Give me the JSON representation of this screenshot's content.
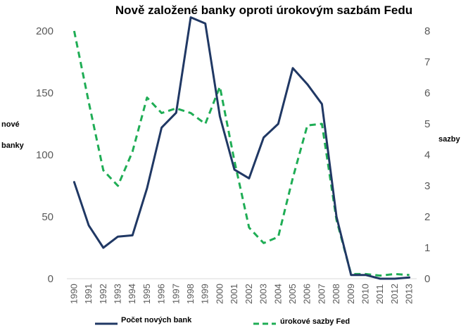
{
  "chart_data": {
    "type": "line",
    "title": "Nově založené banky oproti úrokovým sazbám Fedu",
    "ylabel_left": [
      "nové",
      "banky"
    ],
    "ylabel_right": "sazby",
    "x": [
      "1990",
      "1991",
      "1992",
      "1993",
      "1994",
      "1995",
      "1996",
      "1997",
      "1998",
      "1999",
      "2000",
      "2001",
      "2002",
      "2003",
      "2004",
      "2005",
      "2006",
      "2007",
      "2008",
      "2009",
      "2010",
      "2011",
      "2012",
      "2013"
    ],
    "ylim_left": [
      0,
      200
    ],
    "yticks_left": [
      0,
      50,
      100,
      150,
      200
    ],
    "ylim_right": [
      0,
      8
    ],
    "yticks_right": [
      0,
      1,
      2,
      3,
      4,
      5,
      6,
      7,
      8
    ],
    "grid": false,
    "legend_position": "bottom",
    "series": [
      {
        "name": "Počet nových bank",
        "axis": "left",
        "style": "solid",
        "color": "#203864",
        "values": [
          78,
          43,
          25,
          34,
          35,
          73,
          122,
          134,
          211,
          206,
          131,
          88,
          81,
          114,
          125,
          170,
          157,
          141,
          50,
          3,
          3,
          0,
          0,
          1
        ]
      },
      {
        "name": "úrokové sazby Fed",
        "axis": "right",
        "style": "dashed",
        "color": "#1fad55",
        "values": [
          8.0,
          5.7,
          3.5,
          3.0,
          4.1,
          5.85,
          5.35,
          5.5,
          5.35,
          5.0,
          6.2,
          3.8,
          1.65,
          1.15,
          1.35,
          3.25,
          4.95,
          5.0,
          1.9,
          0.15,
          0.15,
          0.1,
          0.15,
          0.12
        ]
      }
    ]
  }
}
